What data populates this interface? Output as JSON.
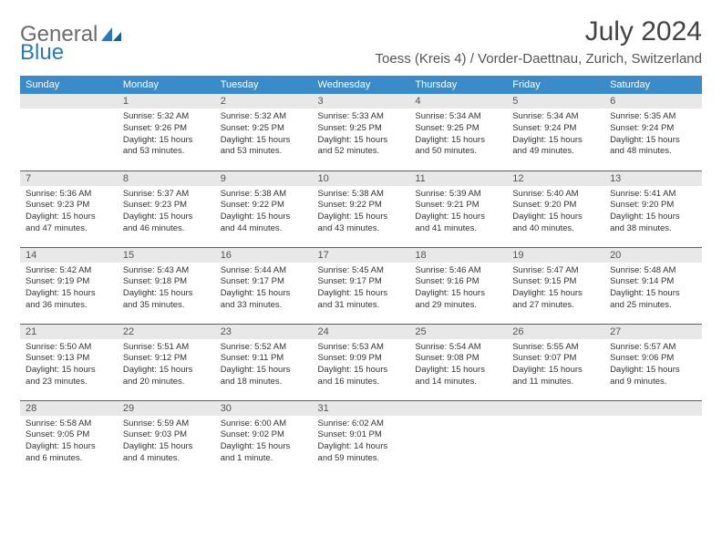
{
  "brand": {
    "text1": "General",
    "text2": "Blue"
  },
  "title": "July 2024",
  "location": "Toess (Kreis 4) / Vorder-Daettnau, Zurich, Switzerland",
  "colors": {
    "header_bg": "#3a8bc9",
    "header_text": "#ffffff",
    "daynum_bg": "#e8e8e8",
    "row_border": "#2d6ca3",
    "brand_gray": "#6b6b6b",
    "brand_blue": "#2b78bd"
  },
  "weekdays": [
    "Sunday",
    "Monday",
    "Tuesday",
    "Wednesday",
    "Thursday",
    "Friday",
    "Saturday"
  ],
  "first_weekday_index": 1,
  "days": [
    {
      "n": 1,
      "sunrise": "5:32 AM",
      "sunset": "9:26 PM",
      "daylight": "15 hours and 53 minutes."
    },
    {
      "n": 2,
      "sunrise": "5:32 AM",
      "sunset": "9:25 PM",
      "daylight": "15 hours and 53 minutes."
    },
    {
      "n": 3,
      "sunrise": "5:33 AM",
      "sunset": "9:25 PM",
      "daylight": "15 hours and 52 minutes."
    },
    {
      "n": 4,
      "sunrise": "5:34 AM",
      "sunset": "9:25 PM",
      "daylight": "15 hours and 50 minutes."
    },
    {
      "n": 5,
      "sunrise": "5:34 AM",
      "sunset": "9:24 PM",
      "daylight": "15 hours and 49 minutes."
    },
    {
      "n": 6,
      "sunrise": "5:35 AM",
      "sunset": "9:24 PM",
      "daylight": "15 hours and 48 minutes."
    },
    {
      "n": 7,
      "sunrise": "5:36 AM",
      "sunset": "9:23 PM",
      "daylight": "15 hours and 47 minutes."
    },
    {
      "n": 8,
      "sunrise": "5:37 AM",
      "sunset": "9:23 PM",
      "daylight": "15 hours and 46 minutes."
    },
    {
      "n": 9,
      "sunrise": "5:38 AM",
      "sunset": "9:22 PM",
      "daylight": "15 hours and 44 minutes."
    },
    {
      "n": 10,
      "sunrise": "5:38 AM",
      "sunset": "9:22 PM",
      "daylight": "15 hours and 43 minutes."
    },
    {
      "n": 11,
      "sunrise": "5:39 AM",
      "sunset": "9:21 PM",
      "daylight": "15 hours and 41 minutes."
    },
    {
      "n": 12,
      "sunrise": "5:40 AM",
      "sunset": "9:20 PM",
      "daylight": "15 hours and 40 minutes."
    },
    {
      "n": 13,
      "sunrise": "5:41 AM",
      "sunset": "9:20 PM",
      "daylight": "15 hours and 38 minutes."
    },
    {
      "n": 14,
      "sunrise": "5:42 AM",
      "sunset": "9:19 PM",
      "daylight": "15 hours and 36 minutes."
    },
    {
      "n": 15,
      "sunrise": "5:43 AM",
      "sunset": "9:18 PM",
      "daylight": "15 hours and 35 minutes."
    },
    {
      "n": 16,
      "sunrise": "5:44 AM",
      "sunset": "9:17 PM",
      "daylight": "15 hours and 33 minutes."
    },
    {
      "n": 17,
      "sunrise": "5:45 AM",
      "sunset": "9:17 PM",
      "daylight": "15 hours and 31 minutes."
    },
    {
      "n": 18,
      "sunrise": "5:46 AM",
      "sunset": "9:16 PM",
      "daylight": "15 hours and 29 minutes."
    },
    {
      "n": 19,
      "sunrise": "5:47 AM",
      "sunset": "9:15 PM",
      "daylight": "15 hours and 27 minutes."
    },
    {
      "n": 20,
      "sunrise": "5:48 AM",
      "sunset": "9:14 PM",
      "daylight": "15 hours and 25 minutes."
    },
    {
      "n": 21,
      "sunrise": "5:50 AM",
      "sunset": "9:13 PM",
      "daylight": "15 hours and 23 minutes."
    },
    {
      "n": 22,
      "sunrise": "5:51 AM",
      "sunset": "9:12 PM",
      "daylight": "15 hours and 20 minutes."
    },
    {
      "n": 23,
      "sunrise": "5:52 AM",
      "sunset": "9:11 PM",
      "daylight": "15 hours and 18 minutes."
    },
    {
      "n": 24,
      "sunrise": "5:53 AM",
      "sunset": "9:09 PM",
      "daylight": "15 hours and 16 minutes."
    },
    {
      "n": 25,
      "sunrise": "5:54 AM",
      "sunset": "9:08 PM",
      "daylight": "15 hours and 14 minutes."
    },
    {
      "n": 26,
      "sunrise": "5:55 AM",
      "sunset": "9:07 PM",
      "daylight": "15 hours and 11 minutes."
    },
    {
      "n": 27,
      "sunrise": "5:57 AM",
      "sunset": "9:06 PM",
      "daylight": "15 hours and 9 minutes."
    },
    {
      "n": 28,
      "sunrise": "5:58 AM",
      "sunset": "9:05 PM",
      "daylight": "15 hours and 6 minutes."
    },
    {
      "n": 29,
      "sunrise": "5:59 AM",
      "sunset": "9:03 PM",
      "daylight": "15 hours and 4 minutes."
    },
    {
      "n": 30,
      "sunrise": "6:00 AM",
      "sunset": "9:02 PM",
      "daylight": "15 hours and 1 minute."
    },
    {
      "n": 31,
      "sunrise": "6:02 AM",
      "sunset": "9:01 PM",
      "daylight": "14 hours and 59 minutes."
    }
  ],
  "labels": {
    "sunrise": "Sunrise:",
    "sunset": "Sunset:",
    "daylight": "Daylight:"
  }
}
